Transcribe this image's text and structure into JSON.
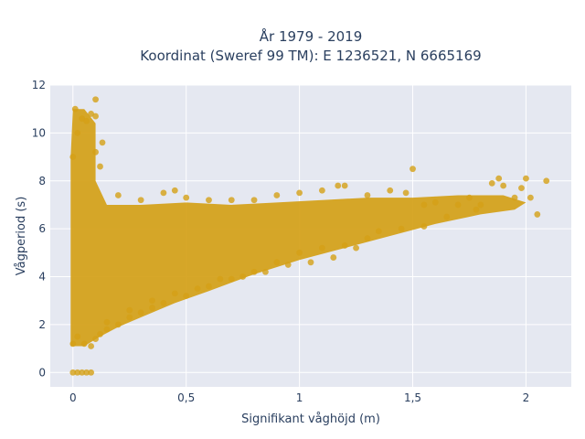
{
  "chart_data": {
    "type": "scatter",
    "title_line1": "År 1979 - 2019",
    "title_line2": "Koordinat (Sweref 99 TM): E 1236521, N 6665169",
    "xlabel": "Signifikant våghöjd (m)",
    "ylabel": "Vågperiod (s)",
    "xlim": [
      -0.1,
      2.2
    ],
    "ylim": [
      -0.6,
      12
    ],
    "x_ticks": [
      0,
      0.5,
      1,
      1.5,
      2
    ],
    "x_tick_labels": [
      "0",
      "0,5",
      "1",
      "1,5",
      "2"
    ],
    "y_ticks": [
      0,
      2,
      4,
      6,
      8,
      10,
      12
    ],
    "y_tick_labels": [
      "0",
      "2",
      "4",
      "6",
      "8",
      "10",
      "12"
    ],
    "grid": true,
    "colors": {
      "marker": "#d4a017",
      "plot_bg": "#e5e8f1",
      "grid": "#ffffff",
      "text": "#2a3f5f"
    },
    "series": [
      {
        "points": [
          [
            0.0,
            0
          ],
          [
            0.02,
            0
          ],
          [
            0.04,
            0
          ],
          [
            0.06,
            0
          ],
          [
            0.08,
            0
          ],
          [
            0.0,
            1.2
          ],
          [
            0.02,
            1.5
          ],
          [
            0.05,
            1.2
          ],
          [
            0.08,
            1.1
          ],
          [
            0.1,
            1.4
          ],
          [
            0.12,
            1.6
          ],
          [
            0.15,
            1.8
          ],
          [
            0.2,
            2.0
          ],
          [
            0.25,
            2.3
          ],
          [
            0.3,
            2.5
          ],
          [
            0.35,
            2.7
          ],
          [
            0.4,
            2.9
          ],
          [
            0.5,
            3.2
          ],
          [
            0.6,
            3.6
          ],
          [
            0.7,
            3.9
          ],
          [
            0.8,
            4.2
          ],
          [
            0.9,
            4.6
          ],
          [
            1.0,
            5.0
          ],
          [
            1.1,
            5.2
          ],
          [
            1.2,
            5.3
          ],
          [
            1.3,
            5.6
          ],
          [
            0.0,
            9.0
          ],
          [
            0.02,
            10.0
          ],
          [
            0.04,
            10.6
          ],
          [
            0.06,
            10.5
          ],
          [
            0.08,
            10.8
          ],
          [
            0.1,
            10.7
          ],
          [
            0.01,
            11.0
          ],
          [
            0.1,
            11.4
          ],
          [
            0.13,
            9.6
          ],
          [
            0.1,
            9.2
          ],
          [
            0.12,
            8.6
          ],
          [
            0.2,
            7.4
          ],
          [
            0.3,
            7.2
          ],
          [
            0.4,
            7.5
          ],
          [
            0.45,
            7.6
          ],
          [
            0.5,
            7.3
          ],
          [
            0.6,
            7.2
          ],
          [
            0.7,
            7.2
          ],
          [
            0.8,
            7.2
          ],
          [
            0.9,
            7.4
          ],
          [
            1.0,
            7.5
          ],
          [
            1.1,
            7.6
          ],
          [
            1.17,
            7.8
          ],
          [
            1.2,
            7.8
          ],
          [
            1.3,
            7.4
          ],
          [
            1.4,
            7.6
          ],
          [
            1.47,
            7.5
          ],
          [
            1.5,
            8.5
          ],
          [
            1.55,
            7.0
          ],
          [
            1.6,
            7.1
          ],
          [
            1.7,
            7.0
          ],
          [
            1.75,
            7.3
          ],
          [
            1.8,
            7.0
          ],
          [
            1.85,
            7.9
          ],
          [
            1.88,
            8.1
          ],
          [
            1.9,
            7.8
          ],
          [
            1.95,
            7.3
          ],
          [
            1.98,
            7.7
          ],
          [
            2.0,
            8.1
          ],
          [
            2.02,
            7.3
          ],
          [
            2.05,
            6.6
          ],
          [
            2.09,
            8.0
          ],
          [
            1.78,
            6.8
          ],
          [
            1.65,
            6.5
          ],
          [
            1.55,
            6.1
          ],
          [
            1.45,
            6.0
          ],
          [
            1.35,
            5.9
          ],
          [
            1.25,
            5.2
          ],
          [
            1.15,
            4.8
          ],
          [
            1.05,
            4.6
          ],
          [
            0.95,
            4.5
          ],
          [
            0.85,
            4.2
          ],
          [
            0.75,
            4.0
          ],
          [
            0.65,
            3.9
          ],
          [
            0.55,
            3.5
          ],
          [
            0.45,
            3.3
          ],
          [
            0.35,
            3.0
          ],
          [
            0.25,
            2.6
          ],
          [
            0.15,
            2.1
          ]
        ]
      }
    ]
  }
}
